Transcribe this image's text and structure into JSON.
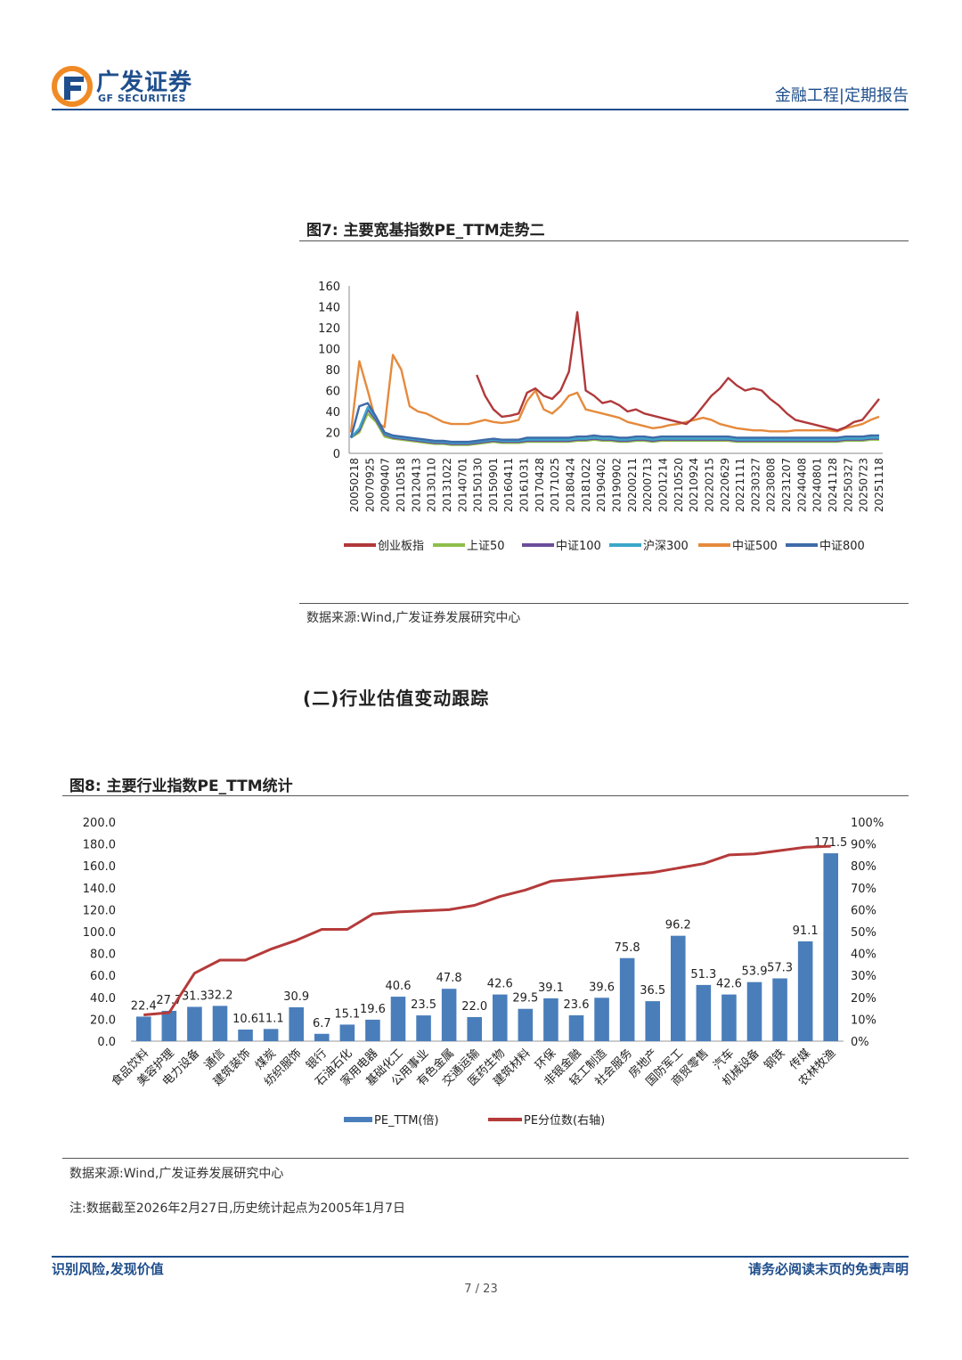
{
  "header": {
    "logo_cn": "广发证券",
    "logo_en": "GF SECURITIES",
    "right": "金融工程|定期报告"
  },
  "fig7": {
    "title": "图7:  主要宽基指数PE_TTM走势二",
    "source": "数据来源:Wind,广发证券发展研究中心"
  },
  "section": "(二)行业估值变动跟踪",
  "fig8": {
    "title": "图8:  主要行业指数PE_TTM统计",
    "source": "数据来源:Wind,广发证券发展研究中心",
    "note": "注:数据截至2026年2月27日,历史统计起点为2005年1月7日"
  },
  "footer": {
    "left": "识别风险,发现价值",
    "right": "请务必阅读末页的免责声明",
    "page": "7 / 23"
  },
  "chart_data": [
    {
      "type": "line",
      "x_ticks": [
        "20050218",
        "20070925",
        "20090407",
        "20110518",
        "20120413",
        "20130110",
        "20131022",
        "20140701",
        "20150130",
        "20150901",
        "20160411",
        "20161031",
        "20170428",
        "20171025",
        "20180424",
        "20181022",
        "20190402",
        "20190902",
        "20200211",
        "20200713",
        "20201214",
        "20210520",
        "20210924",
        "20220215",
        "20220629",
        "20221111",
        "20230327",
        "20230808",
        "20231207",
        "20240408",
        "20240801",
        "20241128",
        "20250327",
        "20250723",
        "20251118"
      ],
      "ylim": [
        0,
        160
      ],
      "y_ticks": [
        0,
        20,
        40,
        60,
        80,
        100,
        120,
        140,
        160
      ],
      "legend_position": "bottom",
      "series": [
        {
          "name": "创业板指",
          "color": "#b0393b",
          "values": [
            null,
            null,
            null,
            null,
            null,
            null,
            null,
            null,
            null,
            null,
            null,
            null,
            null,
            null,
            null,
            75,
            55,
            42,
            35,
            36,
            38,
            58,
            62,
            55,
            52,
            60,
            78,
            135,
            60,
            55,
            48,
            50,
            46,
            40,
            42,
            38,
            36,
            34,
            32,
            30,
            28,
            35,
            45,
            55,
            62,
            72,
            65,
            60,
            62,
            60,
            52,
            46,
            38,
            32,
            30,
            28,
            26,
            24,
            22,
            25,
            30,
            32,
            42,
            52
          ]
        },
        {
          "name": "上证50",
          "color": "#8ebf4a",
          "values": [
            15,
            20,
            38,
            30,
            16,
            14,
            13,
            12,
            11,
            10,
            9,
            9,
            8,
            8,
            8,
            9,
            10,
            11,
            10,
            10,
            10,
            11,
            11,
            11,
            11,
            11,
            11,
            12,
            12,
            13,
            12,
            12,
            11,
            11,
            12,
            12,
            11,
            12,
            12,
            12,
            12,
            12,
            12,
            12,
            12,
            12,
            11,
            11,
            11,
            11,
            11,
            11,
            11,
            11,
            11,
            11,
            11,
            11,
            11,
            12,
            12,
            12,
            13,
            13
          ]
        },
        {
          "name": "中证100",
          "color": "#6a4d9a",
          "values": [
            15,
            22,
            42,
            32,
            18,
            15,
            14,
            13,
            12,
            11,
            10,
            10,
            9,
            9,
            9,
            10,
            11,
            12,
            11,
            11,
            11,
            12,
            12,
            12,
            12,
            12,
            12,
            13,
            13,
            14,
            13,
            13,
            12,
            12,
            13,
            13,
            12,
            13,
            13,
            13,
            13,
            13,
            13,
            13,
            13,
            13,
            12,
            12,
            12,
            12,
            12,
            12,
            12,
            12,
            12,
            12,
            12,
            12,
            12,
            13,
            13,
            13,
            14,
            14
          ]
        },
        {
          "name": "沪深300",
          "color": "#3aa7c9",
          "values": [
            15,
            24,
            44,
            34,
            19,
            16,
            15,
            14,
            13,
            12,
            11,
            11,
            10,
            10,
            10,
            11,
            12,
            13,
            12,
            12,
            12,
            13,
            13,
            13,
            13,
            13,
            13,
            14,
            14,
            15,
            14,
            14,
            13,
            13,
            14,
            14,
            13,
            14,
            14,
            14,
            14,
            14,
            14,
            14,
            14,
            14,
            13,
            13,
            13,
            13,
            13,
            13,
            13,
            13,
            13,
            13,
            13,
            13,
            13,
            14,
            14,
            14,
            15,
            15
          ]
        },
        {
          "name": "中证500",
          "color": "#e58a3c",
          "values": [
            20,
            88,
            60,
            30,
            25,
            94,
            80,
            45,
            40,
            38,
            34,
            30,
            28,
            28,
            28,
            30,
            32,
            30,
            29,
            30,
            32,
            50,
            60,
            42,
            38,
            45,
            55,
            58,
            42,
            40,
            38,
            36,
            34,
            30,
            28,
            26,
            24,
            25,
            27,
            28,
            30,
            32,
            34,
            32,
            28,
            26,
            24,
            23,
            22,
            22,
            21,
            21,
            21,
            22,
            22,
            22,
            22,
            22,
            21,
            24,
            26,
            28,
            32,
            35
          ]
        },
        {
          "name": "中证800",
          "color": "#3f6aa8",
          "values": [
            15,
            45,
            48,
            35,
            20,
            17,
            16,
            15,
            14,
            13,
            12,
            12,
            11,
            11,
            11,
            12,
            13,
            14,
            13,
            13,
            13,
            15,
            15,
            15,
            15,
            15,
            15,
            16,
            16,
            17,
            16,
            16,
            15,
            15,
            16,
            16,
            15,
            16,
            16,
            16,
            16,
            16,
            16,
            16,
            16,
            16,
            15,
            15,
            15,
            15,
            15,
            15,
            15,
            15,
            15,
            15,
            15,
            15,
            15,
            16,
            16,
            16,
            17,
            17
          ]
        }
      ]
    },
    {
      "type": "bar",
      "categories": [
        "食品饮料",
        "美容护理",
        "电力设备",
        "通信",
        "建筑装饰",
        "煤炭",
        "纺织服饰",
        "银行",
        "石油石化",
        "家用电器",
        "基础化工",
        "公用事业",
        "有色金属",
        "交通运输",
        "医药生物",
        "建筑材料",
        "环保",
        "非银金融",
        "轻工制造",
        "社会服务",
        "房地产",
        "国防军工",
        "商贸零售",
        "汽车",
        "机械设备",
        "钢铁",
        "传媒",
        "农林牧渔"
      ],
      "series": [
        {
          "name": "PE_TTM(倍)",
          "color": "#4a7ebb",
          "axis": "left",
          "values": [
            22.4,
            27.7,
            31.3,
            32.2,
            10.6,
            11.1,
            30.9,
            6.7,
            15.1,
            19.6,
            40.6,
            23.5,
            47.8,
            22.0,
            42.6,
            29.5,
            39.1,
            23.6,
            39.6,
            75.8,
            36.5,
            96.2,
            51.3,
            42.6,
            53.9,
            57.3,
            91.1,
            171.5
          ]
        },
        {
          "name": "PE分位数(右轴)",
          "color": "#b53a3a",
          "axis": "right",
          "values": [
            0.12,
            0.13,
            0.31,
            0.37,
            0.37,
            0.42,
            0.46,
            0.51,
            0.51,
            0.58,
            0.59,
            0.595,
            0.6,
            0.62,
            0.66,
            0.69,
            0.73,
            0.74,
            0.75,
            0.76,
            0.77,
            0.79,
            0.81,
            0.85,
            0.855,
            0.87,
            0.885,
            0.89
          ]
        }
      ],
      "data_labels": [
        "22.4",
        "27.7",
        "31.3",
        "32.2",
        "10.6",
        "11.1",
        "30.9",
        "6.7",
        "15.1",
        "19.6",
        "40.6",
        "23.5",
        "47.8",
        "22.0",
        "42.6",
        "29.5",
        "39.1",
        "23.6",
        "39.6",
        "75.8",
        "36.5",
        "96.2",
        "51.3",
        "42.6",
        "53.9",
        "57.3",
        "91.1",
        "171.5"
      ],
      "ylim": [
        0,
        200
      ],
      "y_ticks": [
        "0.0",
        "20.0",
        "40.0",
        "60.0",
        "80.0",
        "100.0",
        "120.0",
        "140.0",
        "160.0",
        "180.0",
        "200.0"
      ],
      "y2lim": [
        0,
        1
      ],
      "y2_ticks": [
        "0%",
        "10%",
        "20%",
        "30%",
        "40%",
        "50%",
        "60%",
        "70%",
        "80%",
        "90%",
        "100%"
      ],
      "legend_position": "bottom"
    }
  ]
}
